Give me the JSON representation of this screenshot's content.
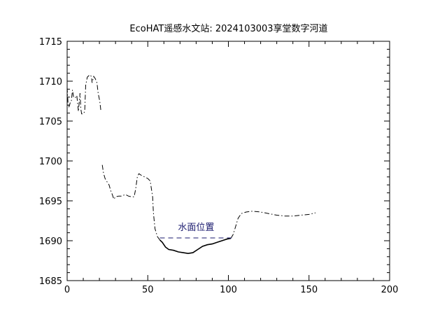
{
  "chart_data": {
    "type": "line",
    "title": "EcoHAT遥感水文站: 2024103003享堂数字河道",
    "xlabel": "",
    "ylabel": "",
    "xlim": [
      0,
      200
    ],
    "ylim": [
      1685,
      1715
    ],
    "x_ticks": [
      0,
      50,
      100,
      150,
      200
    ],
    "y_ticks": [
      1685,
      1690,
      1695,
      1700,
      1705,
      1710,
      1715
    ],
    "grid": false,
    "series": [
      {
        "style": "dash-dot",
        "color": "#000000",
        "points": [
          [
            0,
            1709.2
          ],
          [
            0.5,
            1707.3
          ],
          [
            1,
            1706.7
          ],
          [
            1.5,
            1707.0
          ],
          [
            2,
            1707.4
          ],
          [
            2.6,
            1707.5
          ],
          [
            3.3,
            1708.9
          ],
          [
            4,
            1708.0
          ],
          [
            5,
            1707.9
          ],
          [
            6,
            1708.2
          ],
          [
            6.5,
            1707.2
          ],
          [
            7,
            1706.2
          ],
          [
            8,
            1708.5
          ],
          [
            8.5,
            1706.5
          ],
          [
            9,
            1705.9
          ],
          [
            10,
            1705.9
          ],
          [
            10.9,
            1706.2
          ],
          [
            11.5,
            1709.5
          ],
          [
            12.5,
            1710.5
          ],
          [
            14,
            1710.8
          ],
          [
            15,
            1710.6
          ],
          [
            15.5,
            1709.8
          ],
          [
            16.5,
            1710.6
          ],
          [
            17.5,
            1710.3
          ],
          [
            18.5,
            1709.8
          ],
          [
            19.2,
            1708.5
          ],
          [
            20.2,
            1707.5
          ],
          [
            20.9,
            1706.3
          ]
        ]
      },
      {
        "style": "dash-dot",
        "color": "#000000",
        "points": [
          [
            21.8,
            1699.5
          ],
          [
            22.5,
            1698.5
          ],
          [
            23.5,
            1697.8
          ],
          [
            25,
            1697.3
          ],
          [
            26,
            1697.0
          ],
          [
            27,
            1696.3
          ],
          [
            28,
            1695.8
          ],
          [
            29,
            1695.2
          ],
          [
            30,
            1695.5
          ],
          [
            32,
            1695.6
          ],
          [
            34,
            1695.6
          ],
          [
            36,
            1695.8
          ],
          [
            38,
            1695.6
          ],
          [
            40,
            1695.5
          ],
          [
            41.5,
            1695.5
          ],
          [
            42.5,
            1696.5
          ],
          [
            43.5,
            1698.0
          ],
          [
            44.5,
            1698.4
          ],
          [
            46,
            1698.2
          ],
          [
            48,
            1698.0
          ],
          [
            50,
            1697.8
          ],
          [
            51.5,
            1697.5
          ],
          [
            53,
            1695.5
          ],
          [
            53.5,
            1693.5
          ],
          [
            54.5,
            1691.5
          ],
          [
            56,
            1690.5
          ],
          [
            57.5,
            1690.1
          ]
        ]
      },
      {
        "style": "solid",
        "color": "#000000",
        "points": [
          [
            57.5,
            1690.1
          ],
          [
            59,
            1689.8
          ],
          [
            61,
            1689.2
          ],
          [
            63,
            1688.9
          ],
          [
            66,
            1688.8
          ],
          [
            69,
            1688.6
          ],
          [
            72,
            1688.5
          ],
          [
            75,
            1688.4
          ],
          [
            78,
            1688.5
          ],
          [
            81,
            1688.9
          ],
          [
            84,
            1689.3
          ],
          [
            87,
            1689.5
          ],
          [
            90,
            1689.6
          ],
          [
            93,
            1689.8
          ],
          [
            96,
            1690.0
          ],
          [
            99,
            1690.2
          ],
          [
            101.5,
            1690.3
          ]
        ]
      },
      {
        "style": "dash-dot",
        "color": "#000000",
        "points": [
          [
            101.5,
            1690.3
          ],
          [
            103,
            1690.8
          ],
          [
            104.5,
            1691.8
          ],
          [
            106,
            1692.8
          ],
          [
            108,
            1693.4
          ],
          [
            111,
            1693.6
          ],
          [
            115,
            1693.7
          ],
          [
            120,
            1693.6
          ],
          [
            125,
            1693.4
          ],
          [
            130,
            1693.2
          ],
          [
            135,
            1693.1
          ],
          [
            140,
            1693.1
          ],
          [
            145,
            1693.2
          ],
          [
            150,
            1693.3
          ],
          [
            154,
            1693.5
          ]
        ]
      },
      {
        "style": "dashed",
        "color": "#1a1a6e",
        "points": [
          [
            57.5,
            1690.35
          ],
          [
            102,
            1690.35
          ]
        ]
      }
    ],
    "annotations": [
      {
        "text": "水面位置",
        "x": 80,
        "y": 1691.3,
        "color": "#1a1a6e"
      }
    ]
  }
}
